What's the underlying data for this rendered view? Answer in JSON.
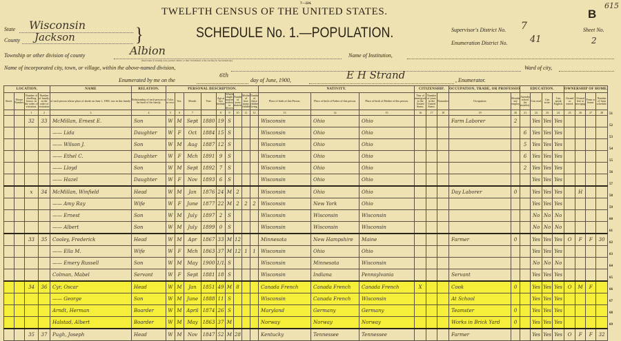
{
  "form_number": "7—224.",
  "corner_note": "615",
  "title": "TWELFTH CENSUS OF THE UNITED STATES.",
  "schedule_letter": "B",
  "schedule_title": "SCHEDULE No. 1.—POPULATION.",
  "fields": {
    "state_label": "State",
    "state": "Wisconsin",
    "county_label": "County",
    "county": "Jackson",
    "township_label": "Township or other division of county",
    "township": "Albion",
    "township_note": "(Insert name of township, town, precinct, district, or other civil division, as the case may be. See instructions.)",
    "institution_label": "Name of Institution,",
    "city_label": "Name of incorporated city, town, or village, within the above-named division,",
    "ward_label": "Ward of city,",
    "enumerated_label": "Enumerated by me on the",
    "enumerated_day": "6th",
    "enumerated_rest": "day of June, 1900,",
    "enumerator": "E H Strand",
    "enumerator_label": ", Enumerator.",
    "supervisor_label": "Supervisor's District No.",
    "supervisor": "7",
    "enumeration_label": "Enumeration District No.",
    "enumeration": "41",
    "sheet_label": "Sheet No.",
    "sheet": "2"
  },
  "groups": [
    {
      "label": "LOCATION.",
      "span": 4
    },
    {
      "label": "NAME",
      "span": 1
    },
    {
      "label": "RELATION.",
      "span": 1
    },
    {
      "label": "PERSONAL DESCRIPTION.",
      "span": 9
    },
    {
      "label": "NATIVITY.",
      "span": 3
    },
    {
      "label": "CITIZENSHIP.",
      "span": 3
    },
    {
      "label": "OCCUPATION, TRADE, OR PROFESSION",
      "span": 2
    },
    {
      "label": "EDUCATION.",
      "span": 4
    },
    {
      "label": "OWNERSHIP OF HOME.",
      "span": 4
    }
  ],
  "subheaders": [
    "Street.",
    "House Number.",
    "Number of dwelling house, in the order of visitation.",
    "Number of family, in the order of visitation.",
    "of each person whose place of abode on June 1, 1900, was in this family.",
    "Relationship of each person to the head of the family.",
    "Color or race.",
    "Sex.",
    "Month.",
    "Year.",
    "Age at last birthday.",
    "Whether single, married, widowed, or divorced.",
    "Number of years married.",
    "Mother of how many children.",
    "Number of these children living.",
    "Place of birth of this Person.",
    "Place of birth of Father of this person.",
    "Place of birth of Mother of this person.",
    "Year of immigration to the United States.",
    "Number of years in the United States.",
    "Naturalization.",
    "Occupation.",
    "Months not employed.",
    "Attended school (in months).",
    "Can read.",
    "Can write.",
    "Can speak English.",
    "Owned or rented.",
    "Owned free or mortgaged.",
    "Farm or house.",
    "Number of farm schedule."
  ],
  "column_numbers": [
    "",
    "",
    "1",
    "2",
    "3",
    "4",
    "5",
    "6",
    "7",
    "",
    "8",
    "9",
    "10",
    "11",
    "12",
    "13",
    "14",
    "15",
    "16",
    "17",
    "18",
    "19",
    "20",
    "21",
    "22",
    "23",
    "24",
    "25",
    "26",
    "27",
    "28"
  ],
  "rows": [
    {
      "line": "51",
      "dw": "32",
      "fam": "33",
      "name": "McMillan, Ernest E.",
      "rel": "Son",
      "color": "W",
      "sex": "M",
      "month": "Sept",
      "year": "1880",
      "age": "19",
      "mar": "S",
      "bp": "Wisconsin",
      "fbp": "Ohio",
      "mbp": "Ohio",
      "occ": "Farm Laborer",
      "unemp": "2",
      "read": "Yes",
      "write": "Yes",
      "eng": "Yes"
    },
    {
      "line": "52",
      "name": "—— Lida",
      "rel": "Daughter",
      "color": "W",
      "sex": "F",
      "month": "Oct",
      "year": "1884",
      "age": "15",
      "mar": "S",
      "bp": "Wisconsin",
      "fbp": "Ohio",
      "mbp": "Ohio",
      "school": "6",
      "read": "Yes",
      "write": "Yes",
      "eng": "Yes"
    },
    {
      "line": "53",
      "name": "—— Wilson J.",
      "rel": "Son",
      "color": "W",
      "sex": "M",
      "month": "Aug",
      "year": "1887",
      "age": "12",
      "mar": "S",
      "bp": "Wisconsin",
      "fbp": "Ohio",
      "mbp": "Ohio",
      "school": "5",
      "read": "Yes",
      "write": "Yes",
      "eng": "Yes"
    },
    {
      "line": "54",
      "name": "—— Ethel C.",
      "rel": "Daughter",
      "color": "W",
      "sex": "F",
      "month": "Mch",
      "year": "1891",
      "age": "9",
      "mar": "S",
      "bp": "Wisconsin",
      "fbp": "Ohio",
      "mbp": "Ohio",
      "school": "6",
      "read": "Yes",
      "write": "Yes",
      "eng": "Yes"
    },
    {
      "line": "55",
      "name": "—— Lloyd",
      "rel": "Son",
      "color": "W",
      "sex": "M",
      "month": "Sept",
      "year": "1892",
      "age": "7",
      "mar": "S",
      "bp": "Wisconsin",
      "fbp": "Ohio",
      "mbp": "Ohio",
      "school": "2",
      "read": "Yes",
      "write": "Yes",
      "eng": "Yes"
    },
    {
      "line": "56",
      "name": "—— Hazel",
      "rel": "Daughter",
      "color": "W",
      "sex": "F",
      "month": "Nov",
      "year": "1893",
      "age": "6",
      "mar": "S",
      "bp": "Wisconsin",
      "fbp": "Ohio",
      "mbp": "Ohio",
      "read": "Yes",
      "write": "Yes",
      "eng": "Yes"
    },
    {
      "line": "57",
      "heavy": true,
      "dw": "x",
      "fam": "34",
      "name": "McMillan, Winfield",
      "rel": "Head",
      "color": "W",
      "sex": "M",
      "month": "Jan",
      "year": "1876",
      "age": "24",
      "mar": "M",
      "ym": "2",
      "bp": "Wisconsin",
      "fbp": "Ohio",
      "mbp": "Ohio",
      "occ": "Day Laborer",
      "unemp": "0",
      "read": "Yes",
      "write": "Yes",
      "eng": "Yes",
      "free": "H"
    },
    {
      "line": "58",
      "name": "—— Amy Ray",
      "rel": "Wife",
      "color": "W",
      "sex": "F",
      "month": "June",
      "year": "1877",
      "age": "22",
      "mar": "M",
      "ym": "2",
      "moc": "2",
      "liv": "2",
      "bp": "Wisconsin",
      "fbp": "New York",
      "mbp": "Ohio",
      "read": "Yes",
      "write": "Yes",
      "eng": "Yes"
    },
    {
      "line": "59",
      "name": "—— Ernest",
      "rel": "Son",
      "color": "W",
      "sex": "M",
      "month": "July",
      "year": "1897",
      "age": "2",
      "mar": "S",
      "bp": "Wisconsin",
      "fbp": "Wisconsin",
      "mbp": "Wisconsin",
      "read": "No",
      "write": "No",
      "eng": "No"
    },
    {
      "line": "60",
      "name": "—— Albert",
      "rel": "Son",
      "color": "W",
      "sex": "M",
      "month": "July",
      "year": "1899",
      "age": "0",
      "mar": "S",
      "bp": "Wisconsin",
      "fbp": "Wisconsin",
      "mbp": "Wisconsin",
      "read": "No",
      "write": "No",
      "eng": "No"
    },
    {
      "line": "61",
      "heavy": true,
      "dw": "33",
      "fam": "35",
      "name": "Cooley, Frederick",
      "rel": "Head",
      "color": "W",
      "sex": "M",
      "month": "Apr",
      "year": "1867",
      "age": "33",
      "mar": "M",
      "ym": "12",
      "bp": "Minnesota",
      "fbp": "New Hampshire",
      "mbp": "Maine",
      "occ": "Farmer",
      "unemp": "0",
      "read": "Yes",
      "write": "Yes",
      "eng": "Yes",
      "own": "O",
      "free": "F",
      "farm": "F",
      "sched": "30"
    },
    {
      "line": "62",
      "name": "—— Ella M.",
      "rel": "Wife",
      "color": "W",
      "sex": "F",
      "month": "Mch",
      "year": "1863",
      "age": "37",
      "mar": "M",
      "ym": "12",
      "moc": "1",
      "liv": "1",
      "bp": "Wisconsin",
      "fbp": "Ohio",
      "mbp": "Ohio",
      "read": "Yes",
      "write": "Yes",
      "eng": "Yes"
    },
    {
      "line": "63",
      "name": "—— Emery Russell",
      "rel": "Son",
      "color": "W",
      "sex": "M",
      "month": "May",
      "year": "1900",
      "age": "1/12",
      "mar": "S",
      "bp": "Wisconsin",
      "fbp": "Minnesota",
      "mbp": "Wisconsin",
      "read": "No",
      "write": "No",
      "eng": "No"
    },
    {
      "line": "64",
      "name": "Colman, Mabel",
      "rel": "Servant",
      "color": "W",
      "sex": "F",
      "month": "Sept",
      "year": "1881",
      "age": "18",
      "mar": "S",
      "bp": "Wisconsin",
      "fbp": "Indiana",
      "mbp": "Pennsylvania",
      "occ": "Servant",
      "read": "Yes",
      "write": "Yes",
      "eng": "Yes"
    },
    {
      "line": "65",
      "heavy": true,
      "hl": true,
      "dw": "34",
      "fam": "36",
      "name": "Cyr, Oscar",
      "rel": "Head",
      "color": "W",
      "sex": "M",
      "month": "Jan",
      "year": "1851",
      "age": "49",
      "mar": "M",
      "ym": "8",
      "imm": "X",
      "bp": "Canada French",
      "fbp": "Canada French",
      "mbp": "Canada French",
      "occ": "Cook",
      "unemp": "0",
      "read": "Yes",
      "write": "Yes",
      "eng": "Yes",
      "own": "O",
      "free": "M",
      "farm": "F"
    },
    {
      "line": "66",
      "hl": true,
      "name": "—— George",
      "rel": "Son",
      "color": "W",
      "sex": "M",
      "month": "June",
      "year": "1888",
      "age": "11",
      "mar": "S",
      "bp": "Wisconsin",
      "fbp": "Canada French",
      "mbp": "Wisconsin",
      "occ": "At School",
      "read": "Yes",
      "write": "Yes",
      "eng": "Yes"
    },
    {
      "line": "67",
      "hl": true,
      "name": "Arndt, Herman",
      "rel": "Boarder",
      "color": "W",
      "sex": "M",
      "month": "April",
      "year": "1874",
      "age": "26",
      "mar": "S",
      "bp": "Maryland",
      "fbp": "Germany",
      "mbp": "Germany",
      "occ": "Teamster",
      "unemp": "0",
      "read": "Yes",
      "write": "Yes",
      "eng": "Yes"
    },
    {
      "line": "68",
      "hl": true,
      "name": "Halstad, Albert",
      "rel": "Boarder",
      "color": "W",
      "sex": "M",
      "month": "May",
      "year": "1863",
      "age": "37",
      "mar": "M",
      "bp": "Norway",
      "fbp": "Norway",
      "mbp": "Norway",
      "occ": "Works in Brick Yard",
      "unemp": "0",
      "read": "Yes",
      "write": "Yes",
      "eng": "Yes"
    },
    {
      "line": "69",
      "heavy": true,
      "dw": "35",
      "fam": "37",
      "name": "Pugh, Joseph",
      "rel": "Head",
      "color": "W",
      "sex": "M",
      "month": "Nov",
      "year": "1847",
      "age": "52",
      "mar": "M",
      "ym": "28",
      "bp": "Kentucky",
      "fbp": "Tennessee",
      "mbp": "Tennessee",
      "occ": "Farmer",
      "read": "Yes",
      "write": "Yes",
      "eng": "Yes",
      "own": "O",
      "free": "F",
      "farm": "F",
      "sched": "32"
    }
  ],
  "colors": {
    "paper": "#efe2b2",
    "highlight": "#f6ef3a",
    "ink": "#2a2418"
  }
}
